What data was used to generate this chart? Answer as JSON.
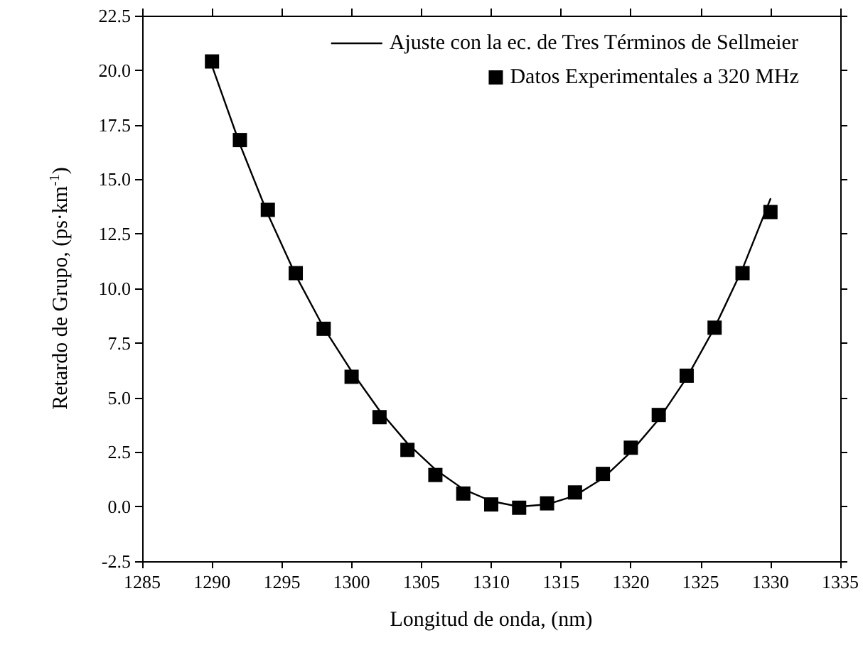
{
  "chart_data": {
    "type": "scatter",
    "xlabel": "Longitud de onda, (nm)",
    "ylabel": "Retardo de Grupo, (ps·km$^{-1}$)",
    "xlim": [
      1285,
      1335
    ],
    "xticks": [
      1285,
      1290,
      1295,
      1300,
      1305,
      1310,
      1315,
      1320,
      1325,
      1330,
      1335
    ],
    "ylim": [
      -2.5,
      22.5
    ],
    "yticks": [
      {
        "value": -2.5,
        "label": "-2.5"
      },
      {
        "value": 0,
        "label": "0.0"
      },
      {
        "value": 2.5,
        "label": "2.5"
      },
      {
        "value": 5,
        "label": "5.0"
      },
      {
        "value": 7.5,
        "label": "7.5"
      },
      {
        "value": 10,
        "label": "10.0"
      },
      {
        "value": 12.5,
        "label": "12.5"
      },
      {
        "value": 15,
        "label": "15.0"
      },
      {
        "value": 17.5,
        "label": "17.5"
      },
      {
        "value": 20,
        "label": "20.0"
      },
      {
        "value": 22.5,
        "label": "22.5"
      }
    ],
    "grid": false,
    "legend": "top right",
    "series": [
      {
        "name": "Ajuste con la ec. de Tres Términos de Sellmeier",
        "type": "line",
        "marker": "none",
        "line_style": "solid",
        "color": "#000000",
        "x": [
          1290,
          1292,
          1294,
          1296,
          1298,
          1300,
          1302,
          1304,
          1306,
          1308,
          1310,
          1312,
          1314,
          1316,
          1318,
          1320,
          1322,
          1324,
          1326,
          1328,
          1330
        ],
        "values": [
          20.2,
          16.6,
          13.4,
          10.6,
          8.2,
          6.2,
          4.4,
          2.9,
          1.7,
          0.8,
          0.25,
          0.0,
          0.1,
          0.5,
          1.3,
          2.5,
          4.0,
          5.9,
          8.2,
          10.9,
          14.1
        ]
      },
      {
        "name": "Datos Experimentales a 320 MHz",
        "marker": "square",
        "color": "#000000",
        "x": [
          1290,
          1292,
          1294,
          1296,
          1298,
          1300,
          1302,
          1304,
          1306,
          1308,
          1310,
          1312,
          1314,
          1316,
          1318,
          1320,
          1322,
          1324,
          1326,
          1328,
          1330
        ],
        "values": [
          20.4,
          16.8,
          13.6,
          10.7,
          8.15,
          5.95,
          4.1,
          2.6,
          1.45,
          0.6,
          0.1,
          -0.05,
          0.15,
          0.65,
          1.5,
          2.7,
          4.2,
          6.0,
          8.2,
          10.7,
          13.5
        ]
      }
    ]
  }
}
